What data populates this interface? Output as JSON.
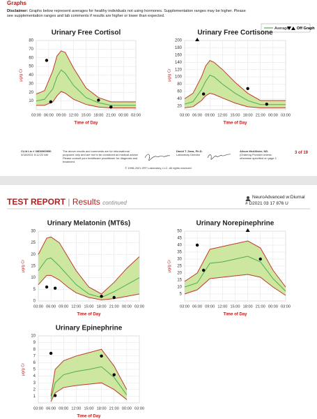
{
  "page1": {
    "section_title": "Graphs",
    "disclaimer_label": "Disclaimer:",
    "disclaimer": "Graphs below represent averages for healthy individuals not using hormones. Supplementation ranges may be higher. Please see supplementation ranges and lab comments if results are higher or lower than expected.",
    "legend": {
      "average": "Average",
      "off_graph": "Off Graph"
    },
    "footer": {
      "clia": "CLIA Lic # 38D0960950",
      "timestamp": "3/18/2021 5:12:22 AM",
      "notice": "The above results and comments are for informational purposes only and are not to be construed as medical advice. Please consult your healthcare practitioner for diagnosis and treatment.",
      "director_name": "David T. Zava, Ph.D.",
      "director_role": "Laboratory Director",
      "provider_name": "Alison McAllister, ND.",
      "provider_note": "(Ordering Provider unless otherwise specified on page 1",
      "page_number": "3 of 19",
      "copyright": "© 1998-2021 ZRT Laboratory, LLC. All rights reserved."
    }
  },
  "page2": {
    "title": "TEST REPORT",
    "separator": "|",
    "subtitle": "Results",
    "subtitle_note": "continued",
    "test_name": "NeuroAdvanced w:Diurnal",
    "accession": "# D2021 03 17 876 U"
  },
  "chart_data": [
    {
      "type": "line",
      "title": "Urinary Free Cortisol",
      "x_label": "Time of Day",
      "y_label": "μg/g Cr",
      "grid": true,
      "band_color": "#cde6a0",
      "xlim": [
        3,
        27
      ],
      "xticks": [
        {
          "value": 3,
          "label": "03:00"
        },
        {
          "value": 6,
          "label": "06:00"
        },
        {
          "value": 9,
          "label": "09:00"
        },
        {
          "value": 12,
          "label": "12:00"
        },
        {
          "value": 15,
          "label": "15:00"
        },
        {
          "value": 18,
          "label": "18:00"
        },
        {
          "value": 21,
          "label": "21:00"
        },
        {
          "value": 24,
          "label": "00:00"
        },
        {
          "value": 27,
          "label": "03:00"
        }
      ],
      "ylim": [
        0,
        80
      ],
      "yticks": [
        10,
        20,
        30,
        40,
        50,
        60,
        70,
        80
      ],
      "x": [
        3,
        5,
        7,
        8,
        9,
        10,
        12,
        15,
        18,
        21,
        24,
        27
      ],
      "series": [
        {
          "color": "#c0392b",
          "values": [
            18,
            22,
            45,
            62,
            68,
            66,
            48,
            25,
            14,
            9,
            9,
            9
          ]
        },
        {
          "color": "#c0392b",
          "values": [
            5,
            5,
            9,
            16,
            21,
            19,
            12,
            6,
            3,
            2,
            2,
            2
          ]
        },
        {
          "name": "Average",
          "color": "#4caf50",
          "values": [
            10,
            12,
            24,
            38,
            46,
            42,
            28,
            14,
            8,
            5,
            5,
            5
          ]
        }
      ],
      "points": {
        "color": "#000000",
        "x": [
          5.5,
          6.5,
          18,
          21
        ],
        "values": [
          57,
          9,
          11,
          3
        ]
      },
      "off_graph_x": []
    },
    {
      "type": "line",
      "title": "Urinary Free Cortisone",
      "x_label": "Time of Day",
      "y_label": "μg/g Cr",
      "grid": true,
      "band_color": "#cde6a0",
      "xlim": [
        3,
        27
      ],
      "xticks": [
        {
          "value": 3,
          "label": "03:00"
        },
        {
          "value": 6,
          "label": "06:00"
        },
        {
          "value": 9,
          "label": "09:00"
        },
        {
          "value": 12,
          "label": "12:00"
        },
        {
          "value": 15,
          "label": "15:00"
        },
        {
          "value": 18,
          "label": "18:00"
        },
        {
          "value": 21,
          "label": "21:00"
        },
        {
          "value": 24,
          "label": "00:00"
        },
        {
          "value": 27,
          "label": "03:00"
        }
      ],
      "ylim": [
        10,
        200
      ],
      "yticks": [
        20,
        40,
        60,
        80,
        100,
        120,
        140,
        160,
        180,
        200
      ],
      "x": [
        3,
        5,
        7,
        8,
        9,
        10,
        12,
        15,
        18,
        21,
        24,
        27
      ],
      "series": [
        {
          "color": "#c0392b",
          "values": [
            40,
            55,
            100,
            130,
            145,
            140,
            120,
            85,
            55,
            35,
            35,
            35
          ]
        },
        {
          "color": "#c0392b",
          "values": [
            15,
            18,
            35,
            48,
            55,
            52,
            42,
            28,
            18,
            15,
            15,
            15
          ]
        },
        {
          "name": "Average",
          "color": "#4caf50",
          "values": [
            25,
            32,
            65,
            88,
            105,
            100,
            80,
            55,
            35,
            24,
            24,
            24
          ]
        }
      ],
      "points": {
        "color": "#000000",
        "x": [
          7.5,
          18,
          22.5
        ],
        "values": [
          53,
          68,
          25
        ]
      },
      "off_graph_x": [
        6
      ]
    },
    {
      "type": "line",
      "title": "Urinary Melatonin (MT6s)",
      "x_label": "Time of Day",
      "y_label": "μg/g Cr",
      "grid": true,
      "band_color": "#cde6a0",
      "xlim": [
        3,
        27
      ],
      "xticks": [
        {
          "value": 3,
          "label": "03:00"
        },
        {
          "value": 6,
          "label": "06:00"
        },
        {
          "value": 9,
          "label": "09:00"
        },
        {
          "value": 12,
          "label": "12:00"
        },
        {
          "value": 15,
          "label": "15:00"
        },
        {
          "value": 18,
          "label": "18:00"
        },
        {
          "value": 21,
          "label": "21:00"
        },
        {
          "value": 24,
          "label": "00:00"
        },
        {
          "value": 27,
          "label": "03:00"
        }
      ],
      "ylim": [
        0,
        30
      ],
      "yticks": [
        0,
        5,
        10,
        15,
        20,
        25,
        30
      ],
      "x": [
        3,
        5,
        6,
        8,
        10,
        12,
        15,
        18,
        21,
        24,
        27
      ],
      "series": [
        {
          "color": "#c0392b",
          "values": [
            20,
            27,
            27.5,
            25,
            19,
            13,
            6,
            3,
            8,
            14,
            19
          ]
        },
        {
          "color": "#c0392b",
          "values": [
            7,
            11,
            11,
            9,
            6,
            3.5,
            1.5,
            0.5,
            1,
            2,
            3
          ]
        },
        {
          "name": "Average",
          "color": "#4caf50",
          "values": [
            13,
            18,
            18.5,
            15,
            11,
            7,
            3,
            1.5,
            4,
            7,
            10
          ]
        }
      ],
      "points": {
        "color": "#000000",
        "x": [
          5,
          7,
          18,
          21
        ],
        "values": [
          6,
          5.5,
          2,
          1.5
        ]
      },
      "off_graph_x": []
    },
    {
      "type": "line",
      "title": "Urinary Norepinephrine",
      "x_label": "Time of Day",
      "y_label": "μg/g Cr",
      "grid": true,
      "band_color": "#cde6a0",
      "xlim": [
        3,
        27
      ],
      "xticks": [
        {
          "value": 3,
          "label": "03:00"
        },
        {
          "value": 6,
          "label": "06:00"
        },
        {
          "value": 9,
          "label": "09:00"
        },
        {
          "value": 12,
          "label": "12:00"
        },
        {
          "value": 15,
          "label": "15:00"
        },
        {
          "value": 18,
          "label": "18:00"
        },
        {
          "value": 21,
          "label": "21:00"
        },
        {
          "value": 24,
          "label": "00:00"
        },
        {
          "value": 27,
          "label": "03:00"
        }
      ],
      "ylim": [
        0,
        50
      ],
      "yticks": [
        5,
        10,
        15,
        20,
        25,
        30,
        35,
        40,
        45,
        50
      ],
      "x": [
        3,
        6,
        9,
        12,
        15,
        18,
        21,
        24,
        27
      ],
      "series": [
        {
          "color": "#c0392b",
          "values": [
            14,
            20,
            37,
            39,
            41,
            43,
            38,
            22,
            10
          ]
        },
        {
          "color": "#c0392b",
          "values": [
            5,
            8,
            16,
            17,
            18,
            19,
            17,
            10,
            4
          ]
        },
        {
          "name": "Average",
          "color": "#4caf50",
          "values": [
            10,
            13,
            27,
            28,
            30,
            32,
            28,
            16,
            7
          ]
        }
      ],
      "points": {
        "color": "#000000",
        "x": [
          6,
          7.5,
          21
        ],
        "values": [
          40,
          22,
          30
        ]
      },
      "off_graph_x": [
        18
      ]
    },
    {
      "type": "line",
      "title": "Urinary Epinephrine",
      "x_label": "Time of Day",
      "y_label": "μg/g Cr",
      "grid": true,
      "band_color": "#cde6a0",
      "xlim": [
        3,
        27
      ],
      "xticks": [
        {
          "value": 3,
          "label": "03:00"
        },
        {
          "value": 6,
          "label": "06:00"
        },
        {
          "value": 9,
          "label": "09:00"
        },
        {
          "value": 12,
          "label": "12:00"
        },
        {
          "value": 15,
          "label": "15:00"
        },
        {
          "value": 18,
          "label": "18:00"
        },
        {
          "value": 21,
          "label": "21:00"
        },
        {
          "value": 24,
          "label": "00:00"
        },
        {
          "value": 27,
          "label": "03:00"
        }
      ],
      "ylim": [
        0,
        10
      ],
      "yticks": [
        1,
        2,
        3,
        4,
        5,
        6,
        7,
        8,
        9,
        10
      ],
      "x": [
        6,
        7,
        9,
        12,
        15,
        18,
        21,
        24
      ],
      "series": [
        {
          "color": "#c0392b",
          "values": [
            1,
            5,
            6.3,
            7,
            7.5,
            8,
            5.5,
            2
          ]
        },
        {
          "color": "#c0392b",
          "values": [
            0.2,
            1.5,
            2.3,
            2.6,
            2.8,
            3,
            2,
            0.5
          ]
        },
        {
          "name": "Average",
          "color": "#4caf50",
          "values": [
            0.6,
            3,
            4.2,
            4.7,
            5,
            5.4,
            3.8,
            1.2
          ]
        }
      ],
      "points": {
        "color": "#000000",
        "x": [
          6,
          7,
          18,
          21
        ],
        "values": [
          7.4,
          1.1,
          7,
          4.2
        ]
      },
      "off_graph_x": []
    }
  ]
}
